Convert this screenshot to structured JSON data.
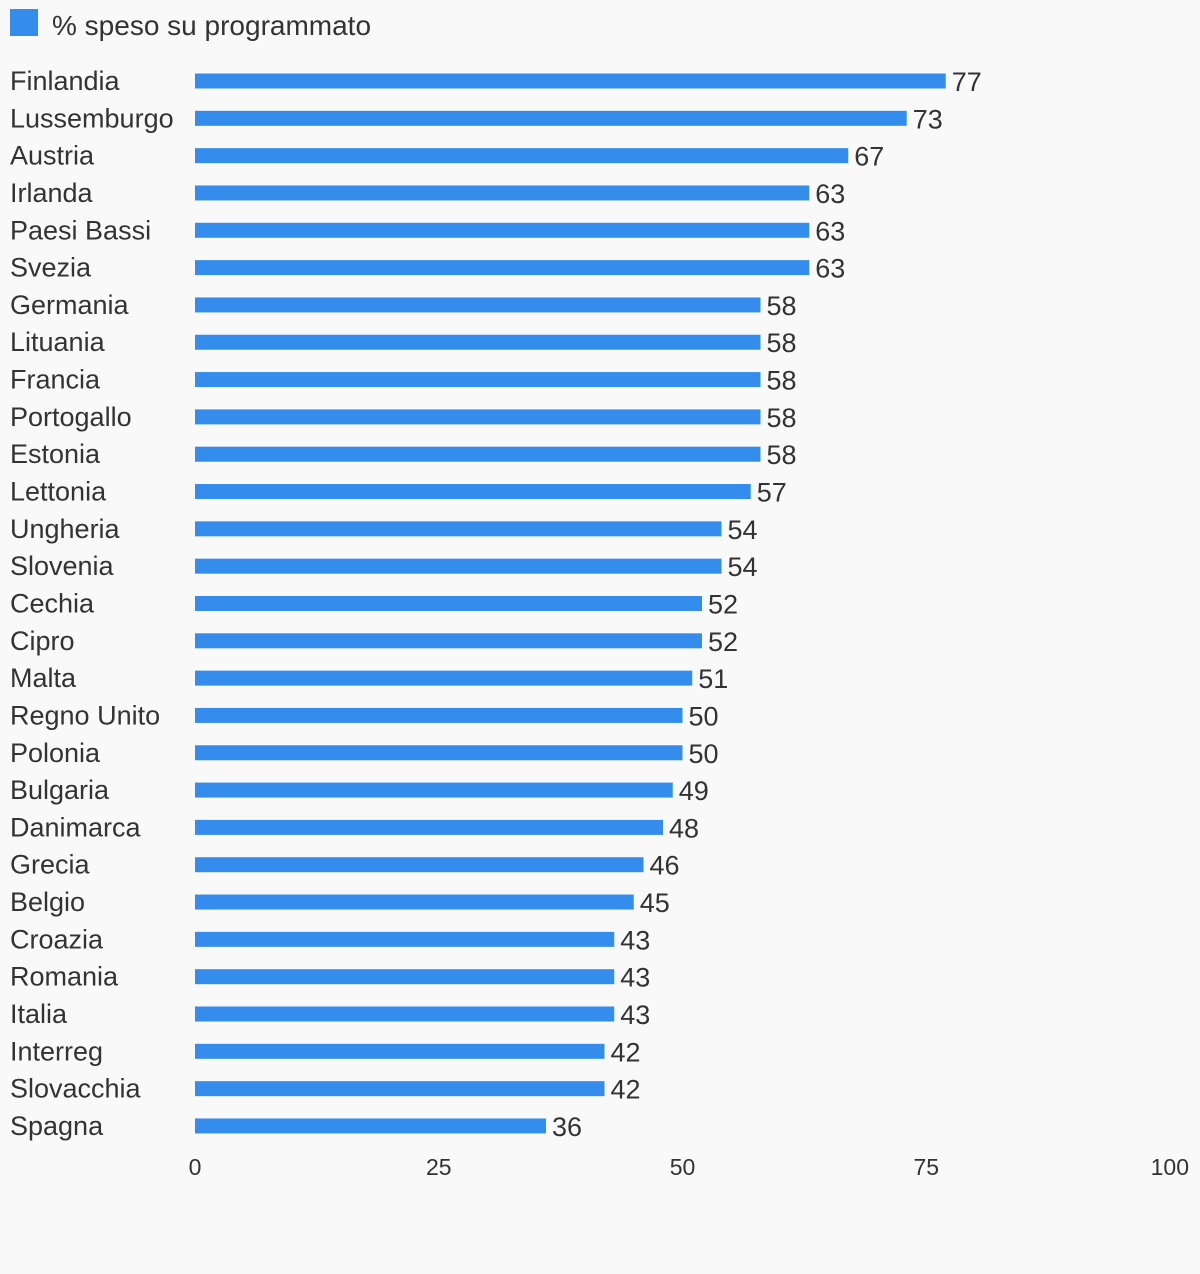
{
  "legend": {
    "label": "% speso su programmato",
    "color": "#348ded"
  },
  "chart_data": {
    "type": "bar",
    "orientation": "horizontal",
    "categories": [
      "Finlandia",
      "Lussemburgo",
      "Austria",
      "Irlanda",
      "Paesi Bassi",
      "Svezia",
      "Germania",
      "Lituania",
      "Francia",
      "Portogallo",
      "Estonia",
      "Lettonia",
      "Ungheria",
      "Slovenia",
      "Cechia",
      "Cipro",
      "Malta",
      "Regno Unito",
      "Polonia",
      "Bulgaria",
      "Danimarca",
      "Grecia",
      "Belgio",
      "Croazia",
      "Romania",
      "Italia",
      "Interreg",
      "Slovacchia",
      "Spagna"
    ],
    "series": [
      {
        "name": "% speso su programmato",
        "values": [
          77,
          73,
          67,
          63,
          63,
          63,
          58,
          58,
          58,
          58,
          58,
          57,
          54,
          54,
          52,
          52,
          51,
          50,
          50,
          49,
          48,
          46,
          45,
          43,
          43,
          43,
          42,
          42,
          36
        ]
      }
    ],
    "xlim": [
      0,
      100
    ],
    "xticks": [
      0,
      25,
      50,
      75,
      100
    ],
    "grid": false,
    "legend_position": "top-left",
    "data_labels": true,
    "bar_color": "#348ded"
  }
}
